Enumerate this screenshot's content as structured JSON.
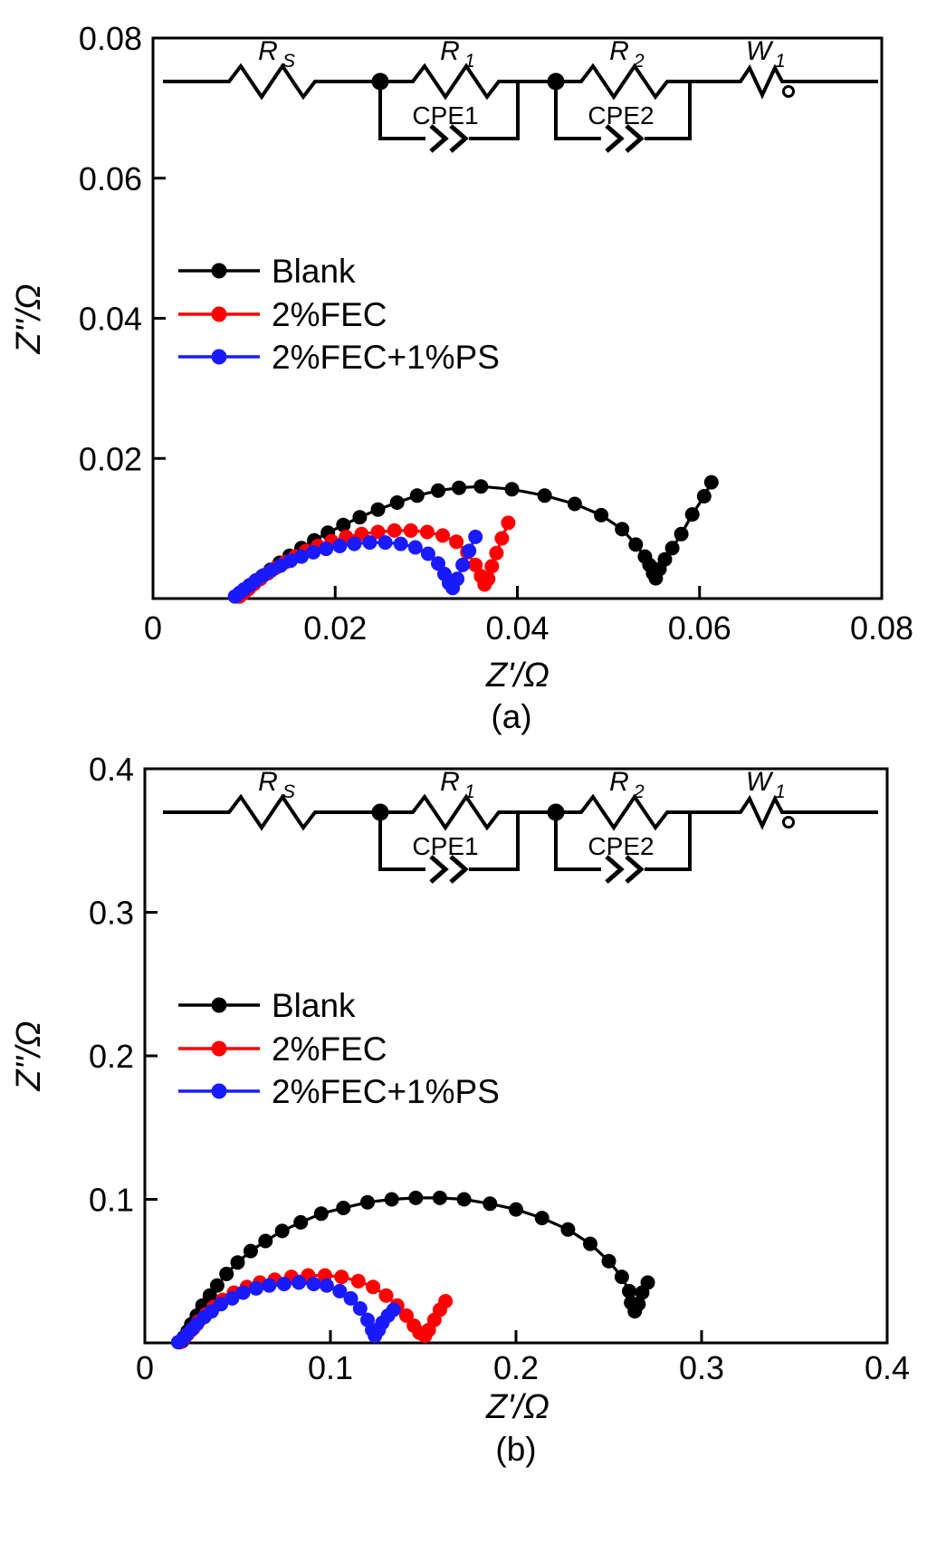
{
  "figure": {
    "background": "#ffffff",
    "colors": {
      "black": "#000000",
      "red": "#ff0000",
      "blue": "#1a1aff"
    }
  },
  "circuit": {
    "rs": {
      "main": "R",
      "sub": "S"
    },
    "r1": {
      "main": "R",
      "sub": "1"
    },
    "r2": {
      "main": "R",
      "sub": "2"
    },
    "w1": {
      "main": "W",
      "sub": "1"
    },
    "cpe1": "CPE1",
    "cpe2": "CPE2"
  },
  "chart_data": [
    {
      "id": "a",
      "type": "scatter",
      "title": "(a)",
      "xlabel": "Z'/Ω",
      "ylabel": "Z''/Ω",
      "xlim": [
        0,
        0.08
      ],
      "ylim": [
        0,
        0.08
      ],
      "grid": false,
      "legend_position": "upper-left-inside",
      "xticks": [
        0,
        0.02,
        0.04,
        0.06,
        0.08
      ],
      "xtick_labels": [
        "0",
        "0.02",
        "0.04",
        "0.06",
        "0.08"
      ],
      "yticks": [
        0.02,
        0.04,
        0.06,
        0.08
      ],
      "ytick_labels": [
        "0.02",
        "0.04",
        "0.06",
        "0.08"
      ],
      "series": [
        {
          "name": "Blank",
          "color": "#000000",
          "x": [
            0.0095,
            0.01,
            0.0106,
            0.0112,
            0.012,
            0.0129,
            0.0139,
            0.015,
            0.0163,
            0.0177,
            0.0192,
            0.0209,
            0.0227,
            0.0247,
            0.0268,
            0.029,
            0.0313,
            0.0336,
            0.036,
            0.0394,
            0.043,
            0.0463,
            0.0492,
            0.0515,
            0.053,
            0.054,
            0.0545,
            0.0549,
            0.0552,
            0.0556,
            0.0562,
            0.057,
            0.058,
            0.0592,
            0.0605,
            0.0613
          ],
          "y": [
            0.0004,
            0.001,
            0.0017,
            0.0024,
            0.0032,
            0.0041,
            0.0051,
            0.0061,
            0.0072,
            0.0083,
            0.0094,
            0.0105,
            0.0116,
            0.0127,
            0.0137,
            0.0147,
            0.0154,
            0.0158,
            0.016,
            0.0156,
            0.0147,
            0.0135,
            0.0119,
            0.0099,
            0.0077,
            0.006,
            0.0048,
            0.0036,
            0.0029,
            0.0042,
            0.0056,
            0.0072,
            0.0092,
            0.012,
            0.0146,
            0.0166
          ]
        },
        {
          "name": "2%FEC",
          "color": "#ff0000",
          "x": [
            0.0095,
            0.01,
            0.0105,
            0.0111,
            0.0118,
            0.0126,
            0.0135,
            0.0145,
            0.0156,
            0.0168,
            0.0181,
            0.0196,
            0.0212,
            0.0229,
            0.0247,
            0.0265,
            0.0283,
            0.0301,
            0.0318,
            0.0333,
            0.0345,
            0.0354,
            0.036,
            0.0364,
            0.0368,
            0.0372,
            0.0377,
            0.0383,
            0.039
          ],
          "y": [
            0.0003,
            0.0008,
            0.0014,
            0.0021,
            0.0028,
            0.0036,
            0.0044,
            0.0052,
            0.006,
            0.0068,
            0.0075,
            0.0082,
            0.0088,
            0.0092,
            0.0095,
            0.0097,
            0.0097,
            0.0095,
            0.009,
            0.0081,
            0.0066,
            0.0048,
            0.0032,
            0.002,
            0.0028,
            0.0046,
            0.0065,
            0.0086,
            0.0108
          ]
        },
        {
          "name": "2%FEC+1%PS",
          "color": "#1a1aff",
          "x": [
            0.009,
            0.0095,
            0.01,
            0.0106,
            0.0113,
            0.0121,
            0.013,
            0.014,
            0.0151,
            0.0163,
            0.0176,
            0.019,
            0.0205,
            0.0221,
            0.0238,
            0.0255,
            0.0272,
            0.0288,
            0.0302,
            0.0313,
            0.032,
            0.0325,
            0.0329,
            0.0334,
            0.034,
            0.0347,
            0.0354
          ],
          "y": [
            0.0003,
            0.0008,
            0.0013,
            0.0019,
            0.0026,
            0.0033,
            0.004,
            0.0047,
            0.0054,
            0.006,
            0.0066,
            0.0071,
            0.0075,
            0.0078,
            0.008,
            0.008,
            0.0078,
            0.0073,
            0.0064,
            0.005,
            0.0035,
            0.0022,
            0.0015,
            0.0028,
            0.0048,
            0.0068,
            0.0088
          ]
        }
      ]
    },
    {
      "id": "b",
      "type": "scatter",
      "title": "(b)",
      "xlabel": "Z'/Ω",
      "ylabel": "Z''/Ω",
      "xlim": [
        0,
        0.4
      ],
      "ylim": [
        0,
        0.4
      ],
      "grid": false,
      "legend_position": "upper-left-inside",
      "xticks": [
        0,
        0.1,
        0.2,
        0.3,
        0.4
      ],
      "xtick_labels": [
        "0",
        "0.1",
        "0.2",
        "0.3",
        "0.4"
      ],
      "yticks": [
        0.1,
        0.2,
        0.3,
        0.4
      ],
      "ytick_labels": [
        "0.1",
        "0.2",
        "0.3",
        "0.4"
      ],
      "series": [
        {
          "name": "Blank",
          "color": "#000000",
          "x": [
            0.02,
            0.021,
            0.023,
            0.025,
            0.028,
            0.031,
            0.035,
            0.039,
            0.044,
            0.05,
            0.057,
            0.065,
            0.074,
            0.084,
            0.095,
            0.107,
            0.12,
            0.133,
            0.146,
            0.159,
            0.172,
            0.186,
            0.2,
            0.214,
            0.228,
            0.24,
            0.25,
            0.257,
            0.261,
            0.262,
            0.264,
            0.266,
            0.268,
            0.271
          ],
          "y": [
            0.001,
            0.004,
            0.008,
            0.013,
            0.019,
            0.026,
            0.033,
            0.04,
            0.048,
            0.056,
            0.064,
            0.071,
            0.078,
            0.084,
            0.09,
            0.094,
            0.098,
            0.1,
            0.101,
            0.101,
            0.1,
            0.097,
            0.093,
            0.087,
            0.079,
            0.069,
            0.057,
            0.046,
            0.036,
            0.028,
            0.022,
            0.027,
            0.035,
            0.042
          ]
        },
        {
          "name": "2%FEC",
          "color": "#ff0000",
          "x": [
            0.019,
            0.021,
            0.023,
            0.026,
            0.029,
            0.033,
            0.037,
            0.042,
            0.048,
            0.055,
            0.062,
            0.07,
            0.079,
            0.088,
            0.097,
            0.106,
            0.115,
            0.123,
            0.13,
            0.136,
            0.141,
            0.145,
            0.148,
            0.151,
            0.153,
            0.156,
            0.159,
            0.162
          ],
          "y": [
            0.0005,
            0.003,
            0.006,
            0.01,
            0.015,
            0.02,
            0.025,
            0.03,
            0.035,
            0.039,
            0.042,
            0.044,
            0.046,
            0.047,
            0.047,
            0.046,
            0.043,
            0.039,
            0.033,
            0.026,
            0.019,
            0.012,
            0.007,
            0.005,
            0.009,
            0.016,
            0.023,
            0.029
          ]
        },
        {
          "name": "2%FEC+1%PS",
          "color": "#1a1aff",
          "x": [
            0.018,
            0.02,
            0.022,
            0.025,
            0.028,
            0.032,
            0.036,
            0.041,
            0.047,
            0.053,
            0.06,
            0.067,
            0.075,
            0.083,
            0.091,
            0.098,
            0.105,
            0.111,
            0.116,
            0.12,
            0.1225,
            0.124,
            0.126,
            0.128,
            0.131,
            0.134
          ],
          "y": [
            0.0005,
            0.002,
            0.005,
            0.009,
            0.013,
            0.018,
            0.022,
            0.027,
            0.031,
            0.035,
            0.038,
            0.04,
            0.041,
            0.042,
            0.041,
            0.04,
            0.036,
            0.031,
            0.024,
            0.016,
            0.009,
            0.005,
            0.009,
            0.014,
            0.019,
            0.023
          ]
        }
      ]
    }
  ]
}
